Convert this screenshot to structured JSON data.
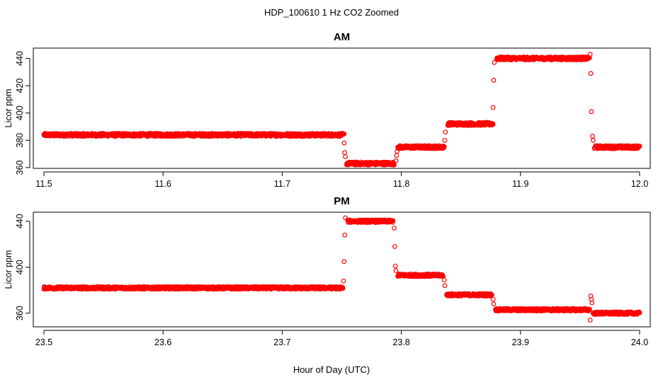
{
  "main_title": "HDP_100610  1 Hz CO2 Zoomed",
  "xlabel": "Hour of Day (UTC)",
  "chart_data": [
    {
      "type": "scatter",
      "title": "AM",
      "ylabel": "Licor ppm",
      "xlim": [
        11.5,
        12.0
      ],
      "ylim": [
        361,
        446
      ],
      "xticks": [
        11.5,
        11.6,
        11.7,
        11.8,
        11.9,
        12.0
      ],
      "xtick_labels": [
        "11.5",
        "11.6",
        "11.7",
        "11.8",
        "11.9",
        "12.0"
      ],
      "yticks": [
        360,
        380,
        400,
        420,
        440
      ],
      "ytick_labels": [
        "360",
        "380",
        "400",
        "420",
        "440"
      ],
      "marker": "open-circle",
      "color": "#ff0000",
      "segments": [
        {
          "x_start": 11.5,
          "x_end": 11.752,
          "y": 384
        },
        {
          "x_start": 11.754,
          "x_end": 11.794,
          "y": 363
        },
        {
          "x_start": 11.797,
          "x_end": 11.836,
          "y": 375
        },
        {
          "x_start": 11.839,
          "x_end": 11.877,
          "y": 392
        },
        {
          "x_start": 11.88,
          "x_end": 11.958,
          "y": 440
        },
        {
          "x_start": 11.962,
          "x_end": 12.0,
          "y": 375
        }
      ],
      "transitions": [
        {
          "x": 11.752,
          "y": 378
        },
        {
          "x": 11.7525,
          "y": 371
        },
        {
          "x": 11.753,
          "y": 368
        },
        {
          "x": 11.7955,
          "y": 365
        },
        {
          "x": 11.796,
          "y": 369
        },
        {
          "x": 11.7965,
          "y": 372
        },
        {
          "x": 11.8365,
          "y": 380
        },
        {
          "x": 11.837,
          "y": 386
        },
        {
          "x": 11.877,
          "y": 404
        },
        {
          "x": 11.8775,
          "y": 424
        },
        {
          "x": 11.878,
          "y": 437
        },
        {
          "x": 11.9585,
          "y": 443
        },
        {
          "x": 11.959,
          "y": 429
        },
        {
          "x": 11.9595,
          "y": 401
        },
        {
          "x": 11.9605,
          "y": 383
        },
        {
          "x": 11.961,
          "y": 380
        }
      ]
    },
    {
      "type": "scatter",
      "title": "PM",
      "ylabel": "Licor ppm",
      "xlim": [
        23.5,
        24.0
      ],
      "ylim": [
        350,
        446
      ],
      "xticks": [
        23.5,
        23.6,
        23.7,
        23.8,
        23.9,
        24.0
      ],
      "xtick_labels": [
        "23.5",
        "23.6",
        "23.7",
        "23.8",
        "23.9",
        "24.0"
      ],
      "yticks": [
        360,
        400,
        440
      ],
      "ytick_labels": [
        "360",
        "400",
        "440"
      ],
      "marker": "open-circle",
      "color": "#ff0000",
      "segments": [
        {
          "x_start": 23.5,
          "x_end": 23.751,
          "y": 382
        },
        {
          "x_start": 23.755,
          "x_end": 23.793,
          "y": 440
        },
        {
          "x_start": 23.797,
          "x_end": 23.835,
          "y": 393
        },
        {
          "x_start": 23.838,
          "x_end": 23.876,
          "y": 376
        },
        {
          "x_start": 23.879,
          "x_end": 23.958,
          "y": 363
        },
        {
          "x_start": 23.961,
          "x_end": 24.0,
          "y": 360
        }
      ],
      "transitions": [
        {
          "x": 23.7515,
          "y": 388
        },
        {
          "x": 23.752,
          "y": 405
        },
        {
          "x": 23.7525,
          "y": 428
        },
        {
          "x": 23.753,
          "y": 443
        },
        {
          "x": 23.794,
          "y": 434
        },
        {
          "x": 23.7945,
          "y": 418
        },
        {
          "x": 23.795,
          "y": 401
        },
        {
          "x": 23.7955,
          "y": 397
        },
        {
          "x": 23.836,
          "y": 389
        },
        {
          "x": 23.8365,
          "y": 384
        },
        {
          "x": 23.877,
          "y": 372
        },
        {
          "x": 23.8775,
          "y": 368
        },
        {
          "x": 23.9585,
          "y": 354
        },
        {
          "x": 23.959,
          "y": 375
        },
        {
          "x": 23.9595,
          "y": 372
        },
        {
          "x": 23.96,
          "y": 369
        }
      ]
    }
  ]
}
